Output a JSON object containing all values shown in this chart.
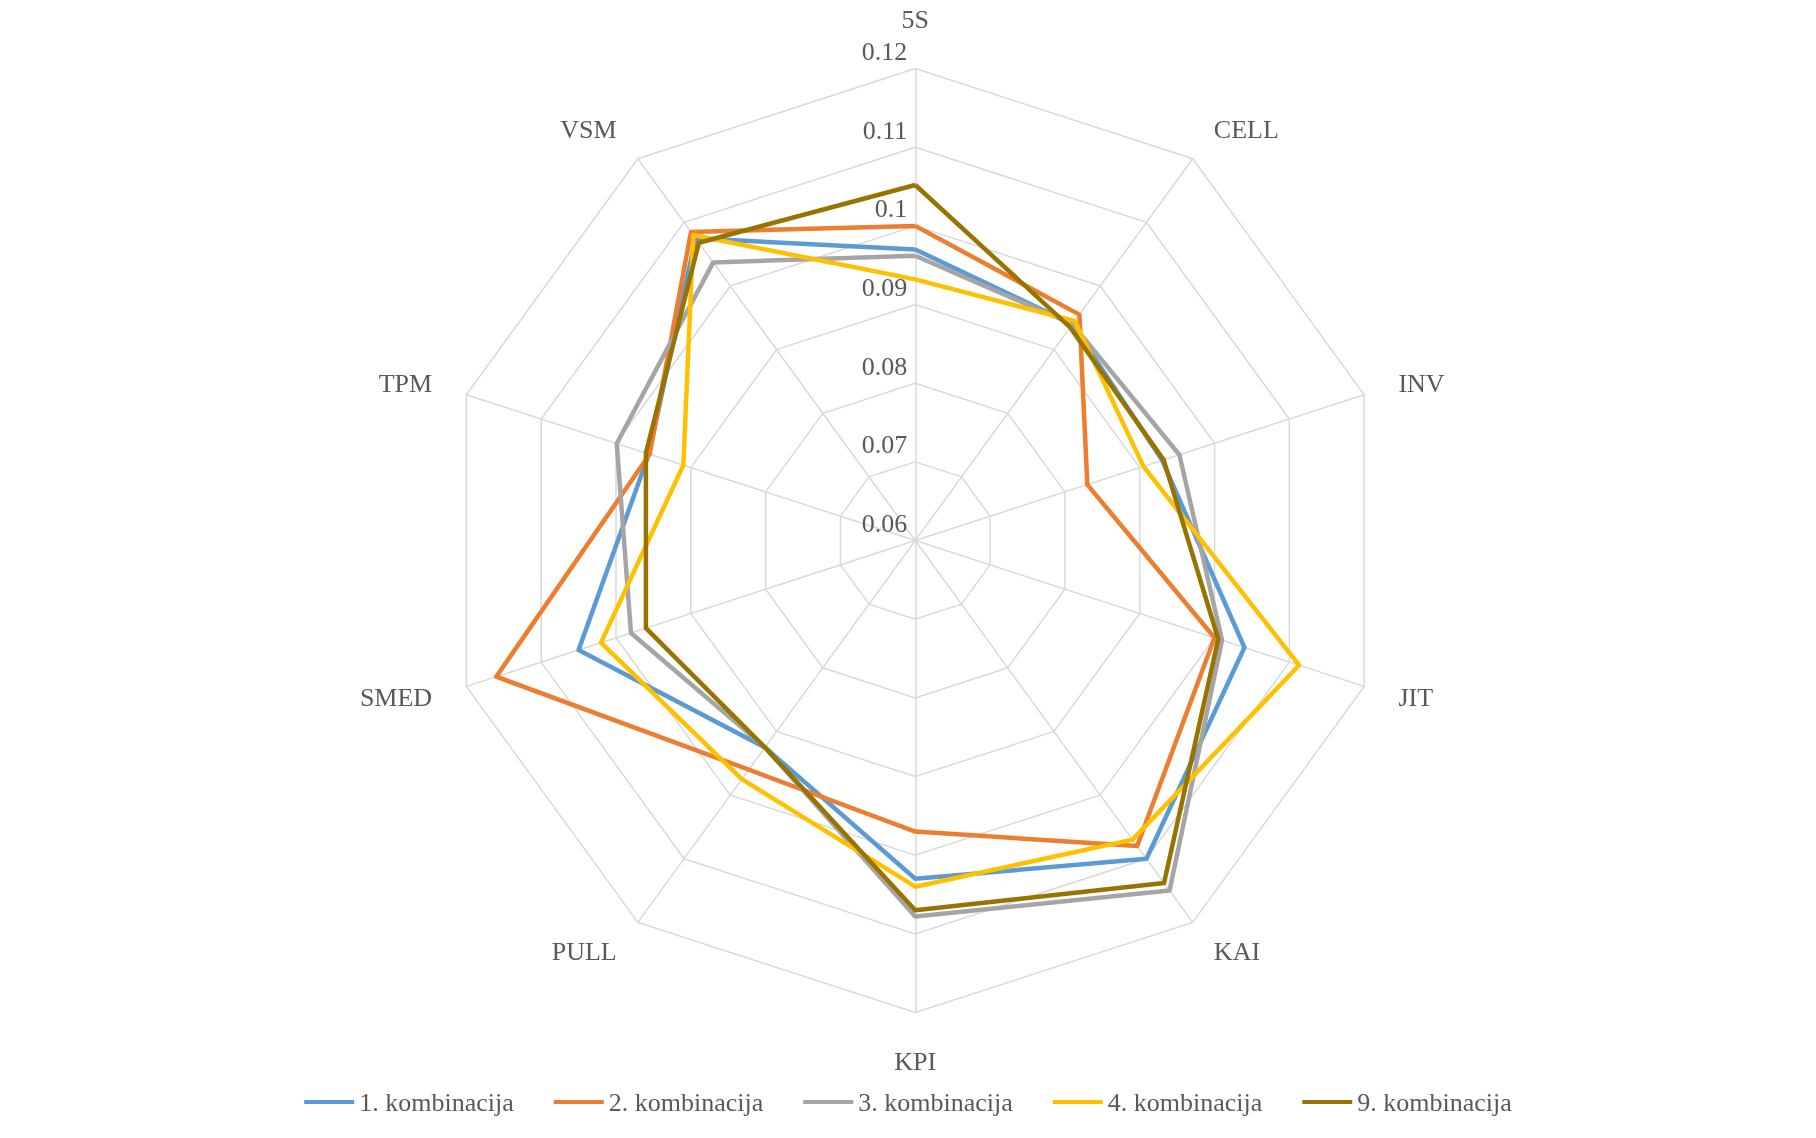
{
  "chart_data": {
    "type": "radar",
    "categories": [
      "5S",
      "CELL",
      "INV",
      "JIT",
      "KAI",
      "KPI",
      "PULL",
      "SMED",
      "TPM",
      "VSM"
    ],
    "ylim": [
      0.06,
      0.12
    ],
    "yticks": [
      0.06,
      0.07,
      0.08,
      0.09,
      0.1,
      0.11,
      0.12
    ],
    "grid": true,
    "legend": "bottom",
    "line_style": "solid",
    "series": [
      {
        "name": "1. kombinacija",
        "color": "#5b9bd5",
        "values": [
          0.097,
          0.094,
          0.093,
          0.104,
          0.11,
          0.103,
          0.0925,
          0.105,
          0.0956,
          0.1075
        ]
      },
      {
        "name": "2. kombinacija",
        "color": "#ed7d31",
        "values": [
          0.1,
          0.0955,
          0.083,
          0.1,
          0.108,
          0.097,
          0.096,
          0.116,
          0.0955,
          0.1085
        ]
      },
      {
        "name": "3. kombinacija",
        "color": "#a5a5a5",
        "values": [
          0.0962,
          0.094,
          0.0953,
          0.101,
          0.115,
          0.1078,
          0.0925,
          0.098,
          0.0999,
          0.1037
        ]
      },
      {
        "name": "4. kombinacija",
        "color": "#ffc000",
        "values": [
          0.0932,
          0.0945,
          0.0905,
          0.1113,
          0.107,
          0.104,
          0.0975,
          0.102,
          0.091,
          0.108
        ]
      },
      {
        "name": "9. kombinacija",
        "color": "#997300",
        "values": [
          0.1052,
          0.0935,
          0.0932,
          0.1005,
          0.1138,
          0.107,
          0.0925,
          0.096,
          0.096,
          0.1068
        ]
      }
    ]
  }
}
